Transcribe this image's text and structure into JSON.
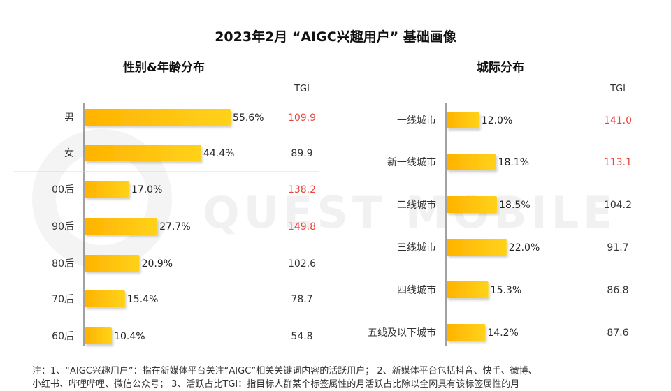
{
  "title": "2023年2月 “AIGC兴趣用户” 基础画像",
  "notes": [
    "注：1、“AIGC兴趣用户”：指在新媒体平台关注“AIGC”相关关键词内容的活跃用户； 2、新媒体平台包括抖音、快手、微博、",
    "小红书、哔哩哔哩、微信公众号； 3、活跃占比TGI：指目标人群某个标签属性的月活跃占比除以全网具有该标签属性的月"
  ],
  "watermark": "QUEST MOBILE",
  "colors": {
    "bar_start": "#ffb300",
    "bar_end": "#ffd21a",
    "tgi_high": "#e8453c",
    "tgi_normal": "#333333"
  },
  "chart_data": [
    {
      "type": "bar",
      "orientation": "horizontal",
      "title": "性别&年龄分布",
      "tgi_label": "TGI",
      "categories": [
        "男",
        "女",
        "00后",
        "90后",
        "80后",
        "70后",
        "60后"
      ],
      "values": [
        55.6,
        44.4,
        17.0,
        27.7,
        20.9,
        15.4,
        10.4
      ],
      "value_labels": [
        "55.6%",
        "44.4%",
        "17.0%",
        "27.7%",
        "20.9%",
        "15.4%",
        "10.4%"
      ],
      "tgi": [
        "109.9",
        "89.9",
        "138.2",
        "149.8",
        "102.6",
        "78.7",
        "54.8"
      ],
      "tgi_highlight": [
        true,
        false,
        true,
        true,
        false,
        false,
        false
      ]
    },
    {
      "type": "bar",
      "orientation": "horizontal",
      "title": "城际分布",
      "tgi_label": "TGI",
      "categories": [
        "一线城市",
        "新一线城市",
        "二线城市",
        "三线城市",
        "四线城市",
        "五线及以下城市"
      ],
      "values": [
        12.0,
        18.1,
        18.5,
        22.0,
        15.3,
        14.2
      ],
      "value_labels": [
        "12.0%",
        "18.1%",
        "18.5%",
        "22.0%",
        "15.3%",
        "14.2%"
      ],
      "tgi": [
        "141.0",
        "113.1",
        "104.2",
        "91.7",
        "86.8",
        "87.6"
      ],
      "tgi_highlight": [
        true,
        true,
        false,
        false,
        false,
        false
      ]
    }
  ]
}
